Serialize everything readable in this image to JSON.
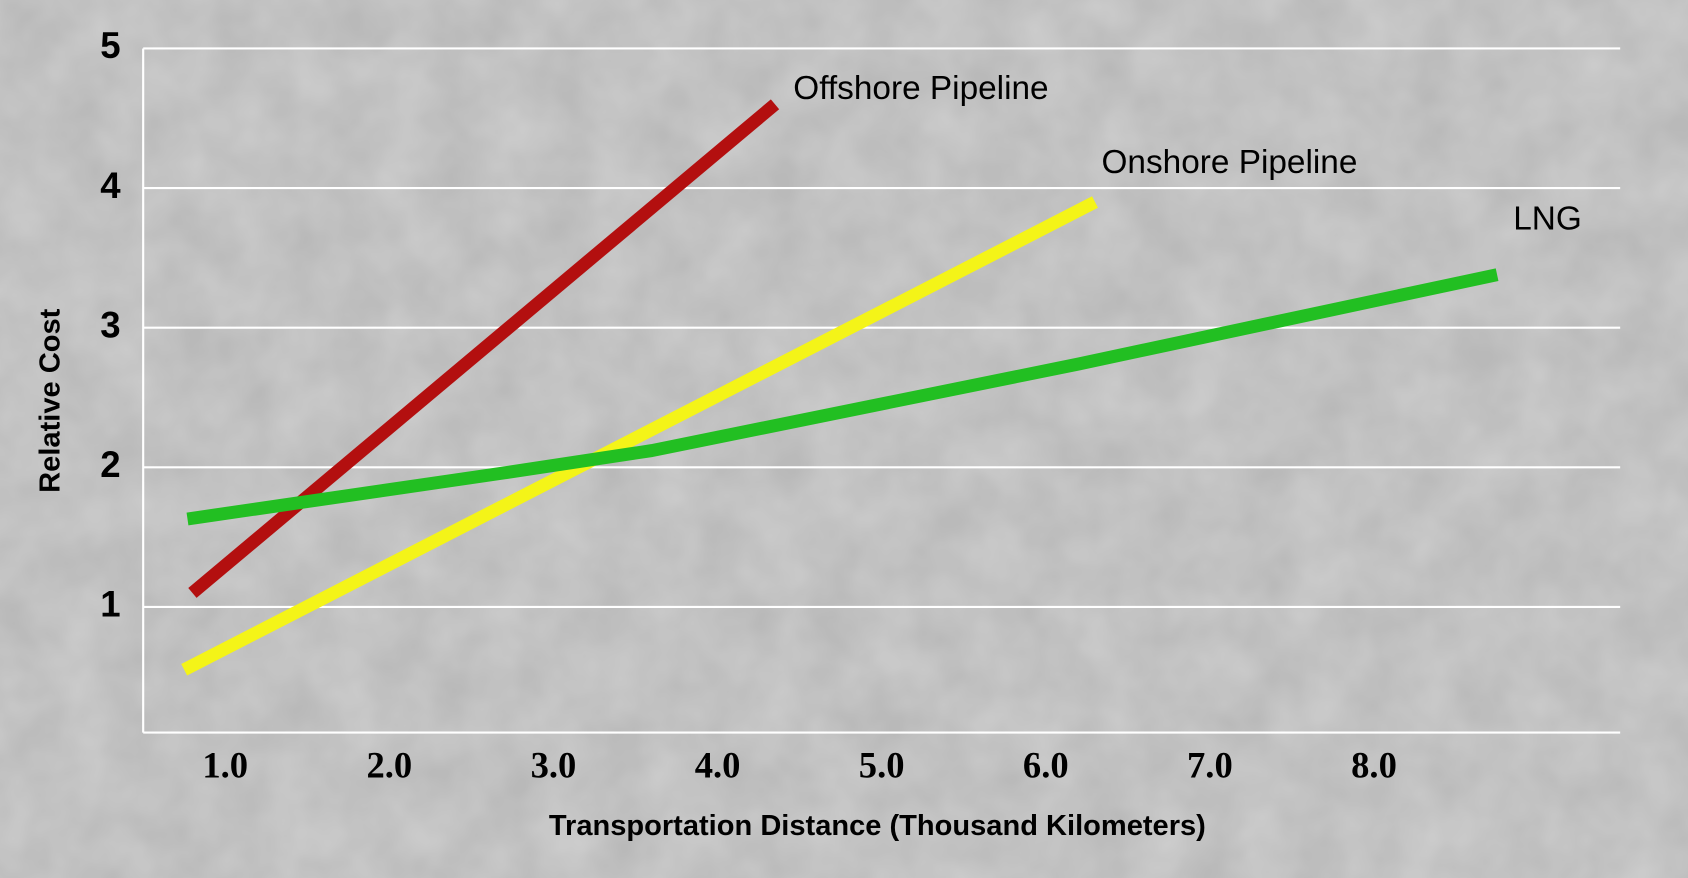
{
  "chart_data": {
    "type": "line",
    "xlabel": "Transportation Distance (Thousand Kilometers)",
    "ylabel": "Relative Cost",
    "xlim": [
      0.5,
      9.5
    ],
    "ylim": [
      0.1,
      5
    ],
    "xticks": [
      {
        "value": 1,
        "label": "1.0"
      },
      {
        "value": 2,
        "label": "2.0"
      },
      {
        "value": 3,
        "label": "3.0"
      },
      {
        "value": 4,
        "label": "4.0"
      },
      {
        "value": 5,
        "label": "5.0"
      },
      {
        "value": 6,
        "label": "6.0"
      },
      {
        "value": 7,
        "label": "7.0"
      },
      {
        "value": 8,
        "label": "8.0"
      }
    ],
    "yticks": [
      1,
      2,
      3,
      4,
      5
    ],
    "grid": true,
    "series": [
      {
        "name": "Offshore Pipeline",
        "color": "#b30f0f",
        "x": [
          0.8,
          4.35
        ],
        "values": [
          1.1,
          4.6
        ]
      },
      {
        "name": "Onshore Pipeline",
        "color": "#f4f418",
        "x": [
          0.75,
          6.3
        ],
        "values": [
          0.55,
          3.9
        ]
      },
      {
        "name": "LNG",
        "color": "#22bf22",
        "x": [
          0.77,
          2.7,
          3.6,
          6.2,
          8.75
        ],
        "values": [
          1.63,
          1.96,
          2.12,
          2.74,
          3.38
        ]
      }
    ]
  }
}
